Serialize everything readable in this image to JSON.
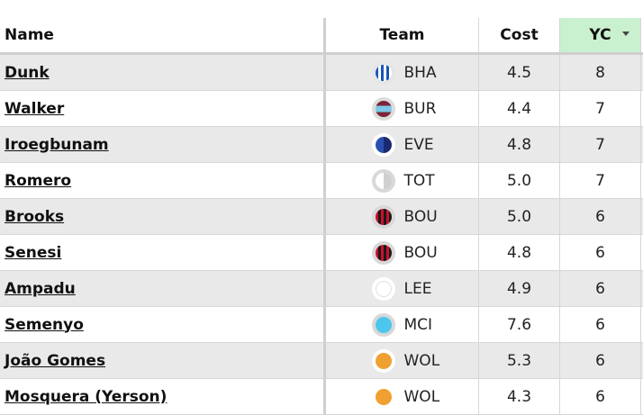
{
  "columns": {
    "name": "Name",
    "team": "Team",
    "cost": "Cost",
    "yc": "YC"
  },
  "rows": [
    {
      "name": "Dunk",
      "team": "BHA",
      "cost": "4.5",
      "yc": "8",
      "kit": "bha"
    },
    {
      "name": "Walker",
      "team": "BUR",
      "cost": "4.4",
      "yc": "7",
      "kit": "bur"
    },
    {
      "name": "Iroegbunam",
      "team": "EVE",
      "cost": "4.8",
      "yc": "7",
      "kit": "eve"
    },
    {
      "name": "Romero",
      "team": "TOT",
      "cost": "5.0",
      "yc": "7",
      "kit": "tot"
    },
    {
      "name": "Brooks",
      "team": "BOU",
      "cost": "5.0",
      "yc": "6",
      "kit": "bou"
    },
    {
      "name": "Senesi",
      "team": "BOU",
      "cost": "4.8",
      "yc": "6",
      "kit": "bou"
    },
    {
      "name": "Ampadu",
      "team": "LEE",
      "cost": "4.9",
      "yc": "6",
      "kit": "lee"
    },
    {
      "name": "Semenyo",
      "team": "MCI",
      "cost": "7.6",
      "yc": "6",
      "kit": "mci"
    },
    {
      "name": "João Gomes",
      "team": "WOL",
      "cost": "5.3",
      "yc": "6",
      "kit": "wol"
    },
    {
      "name": "Mosquera (Yerson)",
      "team": "WOL",
      "cost": "4.3",
      "yc": "6",
      "kit": "wol"
    }
  ],
  "colors": {
    "header_sorted": "#c9f0cf",
    "row_alt": "#e9e9e9"
  },
  "icons": {
    "sort": "chevron-down-icon"
  }
}
